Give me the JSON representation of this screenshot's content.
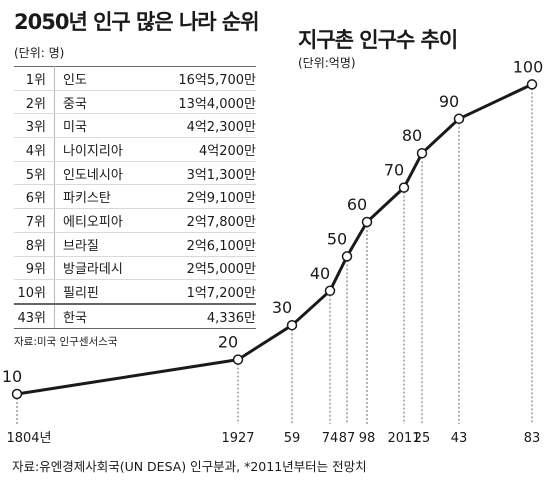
{
  "ranking": {
    "title": "2050년 인구 많은 나라 순위",
    "unit": "(단위: 명)",
    "rows": [
      {
        "rank": "1위",
        "country": "인도",
        "population": "16억5,700만"
      },
      {
        "rank": "2위",
        "country": "중국",
        "population": "13억4,000만"
      },
      {
        "rank": "3위",
        "country": "미국",
        "population": "4억2,300만"
      },
      {
        "rank": "4위",
        "country": "나이지리아",
        "population": "4억200만"
      },
      {
        "rank": "5위",
        "country": "인도네시아",
        "population": "3억1,300만"
      },
      {
        "rank": "6위",
        "country": "파키스탄",
        "population": "2억9,100만"
      },
      {
        "rank": "7위",
        "country": "에티오피아",
        "population": "2억7,800만"
      },
      {
        "rank": "8위",
        "country": "브라질",
        "population": "2억6,100만"
      },
      {
        "rank": "9위",
        "country": "방글라데시",
        "population": "2억5,000만"
      },
      {
        "rank": "10위",
        "country": "필리핀",
        "population": "1억7,200만"
      },
      {
        "rank": "43위",
        "country": "한국",
        "population": "4,336만"
      }
    ],
    "source": "자료:미국 인구센서스국"
  },
  "chart_data": {
    "type": "line",
    "title": "지구촌 인구수 추이",
    "unit": "(단위:억명)",
    "x": [
      1804,
      1927,
      1959,
      1974,
      1987,
      1998,
      2011,
      2025,
      2043,
      2083
    ],
    "x_tick_labels": [
      "1804년",
      "1927",
      "59",
      "74",
      "87",
      "98",
      "2011",
      "25",
      "43",
      "83"
    ],
    "values": [
      10,
      20,
      30,
      40,
      50,
      60,
      70,
      80,
      90,
      100
    ],
    "ylim": [
      0,
      100
    ],
    "grid": false,
    "line_color": "#1a1a1a"
  },
  "footer": "자료:유엔경제사회국(UN DESA) 인구분과, *2011년부터는 전망치"
}
